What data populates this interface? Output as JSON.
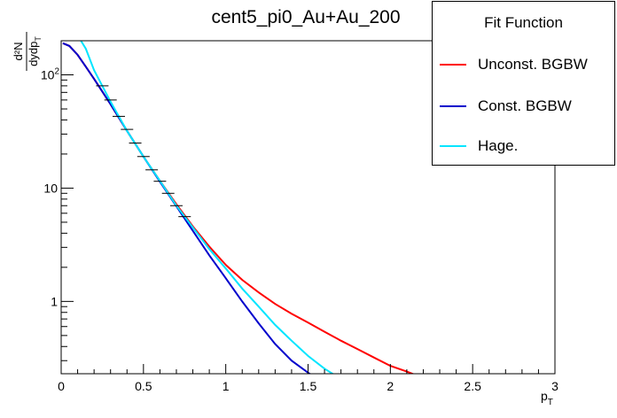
{
  "chart_data": {
    "type": "line",
    "title": "cent5_pi0_Au+Au_200",
    "xlabel": "p",
    "xlabel_sub": "T",
    "ylabel_num": "d²N",
    "ylabel_den": "dydp",
    "ylabel_den_sub": "T",
    "xlim": [
      0,
      3
    ],
    "ylim": [
      0.23,
      200
    ],
    "yscale": "log",
    "x_ticks": [
      "0",
      "0.5",
      "1",
      "1.5",
      "2",
      "2.5",
      "3"
    ],
    "y_ticks": [
      "1",
      "10",
      "10²"
    ],
    "legend": {
      "title": "Fit Function",
      "position": "top-right"
    },
    "series": [
      {
        "name": "Unconst. BGBW",
        "color": "#ff0000",
        "x": [
          0.01,
          0.05,
          0.1,
          0.15,
          0.2,
          0.3,
          0.4,
          0.5,
          0.6,
          0.7,
          0.8,
          0.9,
          1.0,
          1.1,
          1.2,
          1.3,
          1.4,
          1.5,
          1.6,
          1.7,
          1.8,
          1.9,
          2.0,
          2.1,
          2.15
        ],
        "y": [
          190,
          180,
          150,
          118,
          92,
          55,
          32,
          19,
          11.6,
          7.2,
          4.6,
          3.05,
          2.1,
          1.55,
          1.2,
          0.95,
          0.78,
          0.65,
          0.54,
          0.45,
          0.38,
          0.32,
          0.27,
          0.24,
          0.225
        ]
      },
      {
        "name": "Const. BGBW",
        "color": "#0000cc",
        "x": [
          0.01,
          0.05,
          0.1,
          0.15,
          0.2,
          0.3,
          0.4,
          0.5,
          0.6,
          0.7,
          0.8,
          0.9,
          1.0,
          1.1,
          1.2,
          1.3,
          1.4,
          1.5,
          1.55
        ],
        "y": [
          190,
          180,
          150,
          118,
          92,
          55,
          32,
          19,
          11.4,
          6.9,
          4.2,
          2.55,
          1.6,
          1.0,
          0.64,
          0.42,
          0.3,
          0.235,
          0.21
        ]
      },
      {
        "name": "Hage.",
        "color": "#00e5ff",
        "x": [
          0.12,
          0.15,
          0.2,
          0.3,
          0.4,
          0.5,
          0.6,
          0.7,
          0.8,
          0.9,
          1.0,
          1.1,
          1.2,
          1.3,
          1.4,
          1.5,
          1.6,
          1.67
        ],
        "y": [
          200,
          170,
          110,
          58,
          32,
          19,
          11.6,
          7.0,
          4.5,
          2.9,
          1.95,
          1.3,
          0.9,
          0.62,
          0.45,
          0.33,
          0.255,
          0.22
        ]
      }
    ],
    "data_points": {
      "x": [
        0.25,
        0.3,
        0.35,
        0.4,
        0.45,
        0.5,
        0.55,
        0.6,
        0.65,
        0.7,
        0.75
      ],
      "y": [
        80,
        60,
        43,
        33,
        25,
        19,
        14.5,
        11.5,
        9.0,
        7.0,
        5.6
      ]
    }
  }
}
